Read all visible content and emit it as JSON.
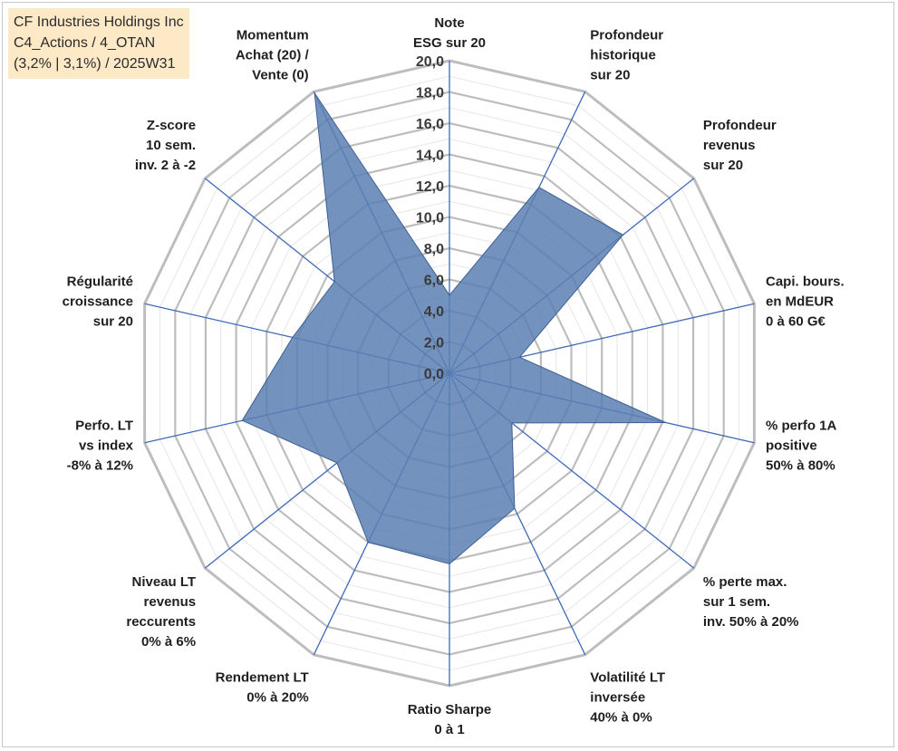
{
  "title_lines": [
    "CF Industries Holdings Inc",
    "C4_Actions / 4_OTAN",
    "(3,2% | 3,1%) / 2025W31"
  ],
  "chart_data": {
    "type": "radar",
    "rmin": 0,
    "rmax": 20,
    "tick_step": 2,
    "ticks": [
      "0,0",
      "2,0",
      "4,0",
      "6,0",
      "8,0",
      "10,0",
      "12,0",
      "14,0",
      "16,0",
      "18,0",
      "20,0"
    ],
    "colors": {
      "fill": "#5b7fb3",
      "axis": "#3e6ab8",
      "grid_major": "#bdbdbd",
      "grid_minor": "#e6e6e6"
    },
    "axes": [
      {
        "label": [
          "Note",
          "ESG sur 20"
        ],
        "value": 5
      },
      {
        "label": [
          "Profondeur",
          "historique",
          "sur 20"
        ],
        "value": 13.2
      },
      {
        "label": [
          "Profondeur",
          "revenus",
          "sur 20"
        ],
        "value": 14.2
      },
      {
        "label": [
          "Capi. bours.",
          "en MdEUR",
          "0 à 60 G€"
        ],
        "value": 4.6
      },
      {
        "label": [
          "% perfo 1A",
          "positive",
          "50% à 80%"
        ],
        "value": 14.2
      },
      {
        "label": [
          "% perte max.",
          "sur 1 sem.",
          "inv. 50% à 20%"
        ],
        "value": 5.1
      },
      {
        "label": [
          "Volatilité LT",
          "inversée",
          "40% à 0%"
        ],
        "value": 9.6
      },
      {
        "label": [
          "Ratio Sharpe",
          "0 à 1"
        ],
        "value": 12.2
      },
      {
        "label": [
          "Rendement LT",
          "0% à 20%"
        ],
        "value": 12.0
      },
      {
        "label": [
          "Niveau LT",
          "revenus",
          "reccurents",
          "0% à 6%"
        ],
        "value": 9.2
      },
      {
        "label": [
          "Perfo. LT",
          "vs index",
          "-8% à 12%"
        ],
        "value": 13.6
      },
      {
        "label": [
          "Régularité",
          "croissance",
          "sur 20"
        ],
        "value": 10.3
      },
      {
        "label": [
          "Z-score",
          "10 sem.",
          "inv. 2 à -2"
        ],
        "value": 9.4
      },
      {
        "label": [
          "Momentum",
          "Achat (20) /",
          "Vente (0)"
        ],
        "value": 19.9
      }
    ]
  }
}
